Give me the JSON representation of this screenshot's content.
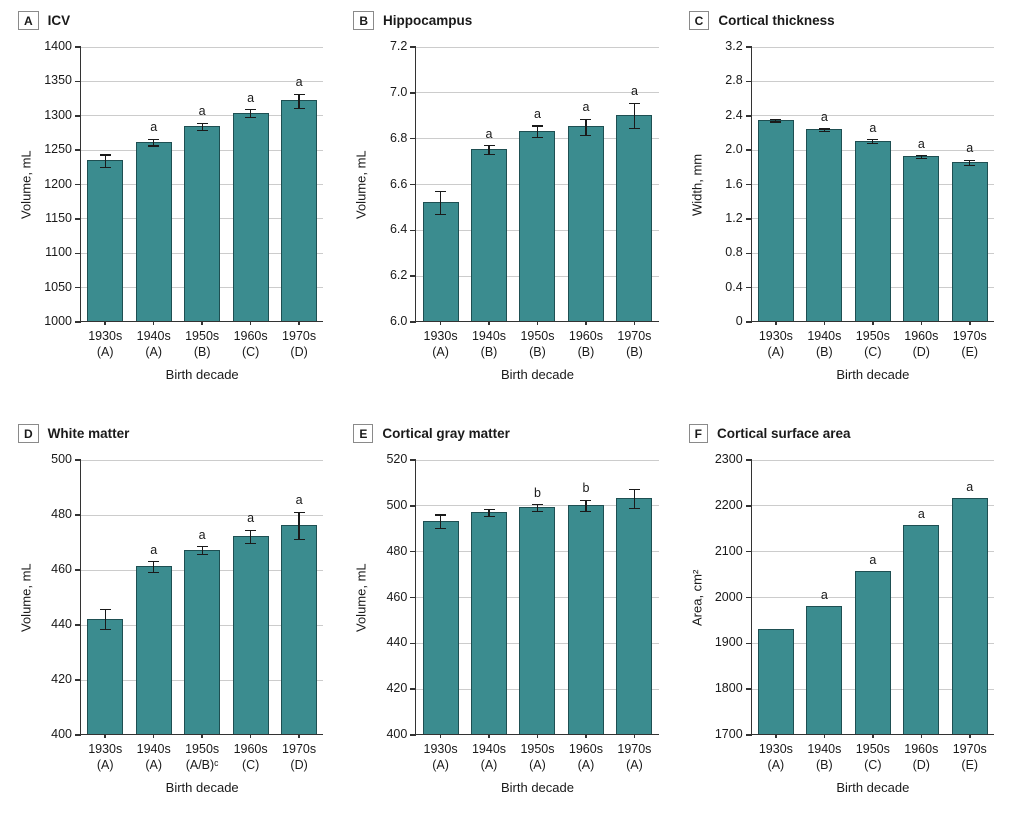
{
  "figure": {
    "bar_fill": "#3B8C8F",
    "bar_border": "#1E4F52",
    "grid_color": "#cccccc",
    "axis_color": "#333333",
    "text_color": "#1a1a1a",
    "xlabel": "Birth decade"
  },
  "chart_data": [
    {
      "type": "bar",
      "panel": "A",
      "title": "ICV",
      "ylabel": "Volume, mL",
      "xlabel": "Birth decade",
      "ylim": [
        1000,
        1400
      ],
      "grid": true,
      "legend": "none",
      "yticks": {
        "values": [
          1000,
          1050,
          1100,
          1150,
          1200,
          1250,
          1300,
          1350,
          1400
        ],
        "labels": [
          "1000",
          "1050",
          "1100",
          "1150",
          "1200",
          "1250",
          "1300",
          "1350",
          "1400"
        ]
      },
      "categories": [
        "1930s",
        "1940s",
        "1950s",
        "1960s",
        "1970s"
      ],
      "groups": [
        "(A)",
        "(A)",
        "(B)",
        "(C)",
        "(D)"
      ],
      "values": [
        1234,
        1261,
        1284,
        1303,
        1321
      ],
      "errors": [
        9,
        5,
        5,
        6,
        10
      ],
      "annotations": [
        "",
        "a",
        "a",
        "a",
        "a"
      ]
    },
    {
      "type": "bar",
      "panel": "B",
      "title": "Hippocampus",
      "ylabel": "Volume, mL",
      "xlabel": "Birth decade",
      "ylim": [
        6.0,
        7.2
      ],
      "grid": true,
      "legend": "none",
      "yticks": {
        "values": [
          6.0,
          6.2,
          6.4,
          6.6,
          6.8,
          7.0,
          7.2
        ],
        "labels": [
          "6.0",
          "6.2",
          "6.4",
          "6.6",
          "6.8",
          "7.0",
          "7.2"
        ]
      },
      "categories": [
        "1930s",
        "1940s",
        "1950s",
        "1960s",
        "1970s"
      ],
      "groups": [
        "(A)",
        "(B)",
        "(B)",
        "(B)",
        "(B)"
      ],
      "values": [
        6.52,
        6.75,
        6.83,
        6.85,
        6.9
      ],
      "errors": [
        0.05,
        0.02,
        0.025,
        0.035,
        0.055
      ],
      "annotations": [
        "",
        "a",
        "a",
        "a",
        "a"
      ]
    },
    {
      "type": "bar",
      "panel": "C",
      "title": "Cortical thickness",
      "ylabel": "Width, mm",
      "xlabel": "Birth decade",
      "ylim": [
        0,
        3.2
      ],
      "grid": true,
      "legend": "none",
      "yticks": {
        "values": [
          0,
          0.4,
          0.8,
          1.2,
          1.6,
          2.0,
          2.4,
          2.8,
          3.2
        ],
        "labels": [
          "0",
          "0.4",
          "0.8",
          "1.2",
          "1.6",
          "2.0",
          "2.4",
          "2.8",
          "3.2"
        ]
      },
      "categories": [
        "1930s",
        "1940s",
        "1950s",
        "1960s",
        "1970s"
      ],
      "groups": [
        "(A)",
        "(B)",
        "(C)",
        "(D)",
        "(E)"
      ],
      "values": [
        2.34,
        2.23,
        2.1,
        1.92,
        1.85
      ],
      "errors": [
        0.012,
        0.015,
        0.02,
        0.015,
        0.03
      ],
      "annotations": [
        "",
        "a",
        "a",
        "a",
        "a"
      ]
    },
    {
      "type": "bar",
      "panel": "D",
      "title": "White matter",
      "ylabel": "Volume, mL",
      "xlabel": "Birth decade",
      "ylim": [
        400,
        500
      ],
      "grid": true,
      "legend": "none",
      "yticks": {
        "values": [
          400,
          420,
          440,
          460,
          480,
          500
        ],
        "labels": [
          "400",
          "420",
          "440",
          "460",
          "480",
          "500"
        ]
      },
      "categories": [
        "1930s",
        "1940s",
        "1950s",
        "1960s",
        "1970s"
      ],
      "groups": [
        "(A)",
        "(A)",
        "(A/B)ᶜ",
        "(C)",
        "(D)"
      ],
      "values": [
        442,
        461,
        467,
        472,
        476
      ],
      "errors": [
        3.5,
        2,
        1.5,
        2.5,
        5
      ],
      "annotations": [
        "",
        "a",
        "a",
        "a",
        "a"
      ]
    },
    {
      "type": "bar",
      "panel": "E",
      "title": "Cortical gray matter",
      "ylabel": "Volume, mL",
      "xlabel": "Birth decade",
      "ylim": [
        400,
        520
      ],
      "grid": true,
      "legend": "none",
      "yticks": {
        "values": [
          400,
          420,
          440,
          460,
          480,
          500,
          520
        ],
        "labels": [
          "400",
          "420",
          "440",
          "460",
          "480",
          "500",
          "520"
        ]
      },
      "categories": [
        "1930s",
        "1940s",
        "1950s",
        "1960s",
        "1970s"
      ],
      "groups": [
        "(A)",
        "(A)",
        "(A)",
        "(A)",
        "(A)"
      ],
      "values": [
        493,
        497,
        499,
        500,
        503
      ],
      "errors": [
        3,
        1.5,
        1.5,
        2.5,
        4
      ],
      "annotations": [
        "",
        "",
        "b",
        "b",
        ""
      ]
    },
    {
      "type": "bar",
      "panel": "F",
      "title": "Cortical surface area",
      "ylabel": "Area, cm²",
      "xlabel": "Birth decade",
      "ylim": [
        1700,
        2300
      ],
      "grid": true,
      "legend": "none",
      "yticks": {
        "values": [
          1700,
          1800,
          1900,
          2000,
          2100,
          2200,
          2300
        ],
        "labels": [
          "1700",
          "1800",
          "1900",
          "2000",
          "2100",
          "2200",
          "2300"
        ]
      },
      "categories": [
        "1930s",
        "1940s",
        "1950s",
        "1960s",
        "1970s"
      ],
      "groups": [
        "(A)",
        "(B)",
        "(C)",
        "(D)",
        "(E)"
      ],
      "values": [
        1930,
        1980,
        2055,
        2155,
        2215
      ],
      "errors": [
        0,
        0,
        0,
        0,
        0
      ],
      "annotations": [
        "",
        "a",
        "a",
        "a",
        "a"
      ]
    }
  ]
}
